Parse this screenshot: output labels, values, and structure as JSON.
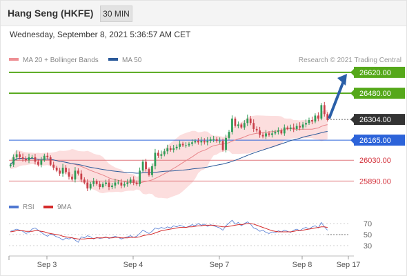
{
  "header": {
    "title": "Hang Seng (HKFE)",
    "timeframe": "30 MIN"
  },
  "subtitle": "Wednesday, September 8, 2021 5:36:57 AM CET",
  "credit": "Research © 2021 Trading Central",
  "colors": {
    "candle_up": "#2e9c57",
    "candle_down": "#c9404a",
    "resistance": "#55a81a",
    "support": "#e0787e",
    "pivot": "#2c63d9",
    "current": "#333333",
    "ma20": "#e8858a",
    "ma50": "#2b5a9a",
    "bollinger_fill": "#fbd8d8",
    "arrow": "#2a5fa8",
    "rsi": "#4f78d1",
    "rsi_ma": "#d52b2b"
  },
  "chart_data": [
    {
      "type": "candlestick",
      "legend": [
        {
          "label": "MA 20 + Bollinger Bands",
          "color": "#ee8f94"
        },
        {
          "label": "MA 50",
          "color": "#2b5a9a"
        }
      ],
      "x_ticks": [
        "Sep 3",
        "Sep 4",
        "Sep 7",
        "Sep 8",
        "Sep 17"
      ],
      "y_range": [
        25790,
        26740
      ],
      "levels": [
        {
          "value": "26620.00",
          "kind": "resistance"
        },
        {
          "value": "26480.00",
          "kind": "resistance"
        },
        {
          "value": "26304.00",
          "kind": "current"
        },
        {
          "value": "26165.00",
          "kind": "pivot"
        },
        {
          "value": "26030.00",
          "kind": "support"
        },
        {
          "value": "25890.00",
          "kind": "support"
        }
      ],
      "close": [
        26000,
        26050,
        26070,
        26050,
        26040,
        26030,
        26050,
        26050,
        26020,
        26000,
        26030,
        26060,
        26050,
        26000,
        25980,
        25960,
        25940,
        25980,
        25950,
        25920,
        25900,
        25960,
        25940,
        25900,
        25880,
        25840,
        25870,
        25890,
        25870,
        25850,
        25870,
        25880,
        25850,
        25860,
        25880,
        25880,
        25860,
        25870,
        25880,
        25900,
        25880,
        25870,
        25960,
        26020,
        25970,
        25930,
        25990,
        26080,
        26060,
        26070,
        26090,
        26110,
        26100,
        26110,
        26120,
        26140,
        26130,
        26130,
        26140,
        26150,
        26160,
        26150,
        26160,
        26150,
        26160,
        26170,
        26170,
        26160,
        26160,
        26100,
        26180,
        26220,
        26310,
        26260,
        26270,
        26250,
        26280,
        26310,
        26280,
        26240,
        26230,
        26200,
        26190,
        26210,
        26200,
        26210,
        26220,
        26230,
        26210,
        26250,
        26240,
        26250,
        26240,
        26260,
        26250,
        26270,
        26280,
        26300,
        26290,
        26330,
        26310,
        26400,
        26340,
        26300
      ]
    },
    {
      "type": "line",
      "title": "RSI",
      "legend": [
        {
          "label": "RSI",
          "color": "#4f78d1"
        },
        {
          "label": "9MA",
          "color": "#d52b2b"
        }
      ],
      "y_ticks": [
        "70",
        "50",
        "30"
      ],
      "ylim": [
        15,
        85
      ],
      "rsi": [
        56,
        58,
        60,
        58,
        56,
        52,
        54,
        60,
        62,
        58,
        54,
        50,
        47,
        51,
        49,
        46,
        44,
        40,
        44,
        42,
        45,
        40,
        36,
        46,
        44,
        48,
        46,
        42,
        45,
        43,
        44,
        46,
        43,
        45,
        47,
        45,
        42,
        44,
        46,
        48,
        45,
        47,
        52,
        58,
        55,
        52,
        56,
        62,
        60,
        63,
        61,
        64,
        62,
        66,
        64,
        67,
        65,
        63,
        65,
        68,
        66,
        70,
        67,
        69,
        65,
        68,
        66,
        64,
        62,
        58,
        66,
        71,
        76,
        69,
        72,
        66,
        70,
        73,
        69,
        62,
        60,
        56,
        58,
        54,
        52,
        55,
        53,
        57,
        55,
        58,
        56,
        54,
        58,
        60,
        57,
        61,
        63,
        60,
        64,
        66,
        62,
        72,
        64,
        58
      ],
      "ma": [
        55,
        56,
        57,
        57,
        57,
        56,
        56,
        56,
        57,
        57,
        56,
        55,
        53,
        52,
        51,
        50,
        49,
        47,
        46,
        45,
        44,
        43,
        42,
        42,
        42,
        43,
        43,
        43,
        44,
        44,
        44,
        45,
        44,
        44,
        45,
        45,
        44,
        44,
        44,
        45,
        45,
        45,
        46,
        48,
        49,
        50,
        51,
        53,
        55,
        57,
        58,
        59,
        60,
        61,
        62,
        63,
        63,
        63,
        64,
        64,
        65,
        66,
        66,
        67,
        67,
        67,
        67,
        66,
        65,
        64,
        64,
        65,
        66,
        67,
        68,
        68,
        69,
        70,
        70,
        69,
        67,
        65,
        63,
        61,
        59,
        57,
        56,
        55,
        55,
        55,
        55,
        55,
        56,
        57,
        57,
        58,
        59,
        60,
        61,
        62,
        63,
        64,
        64,
        63
      ]
    }
  ]
}
